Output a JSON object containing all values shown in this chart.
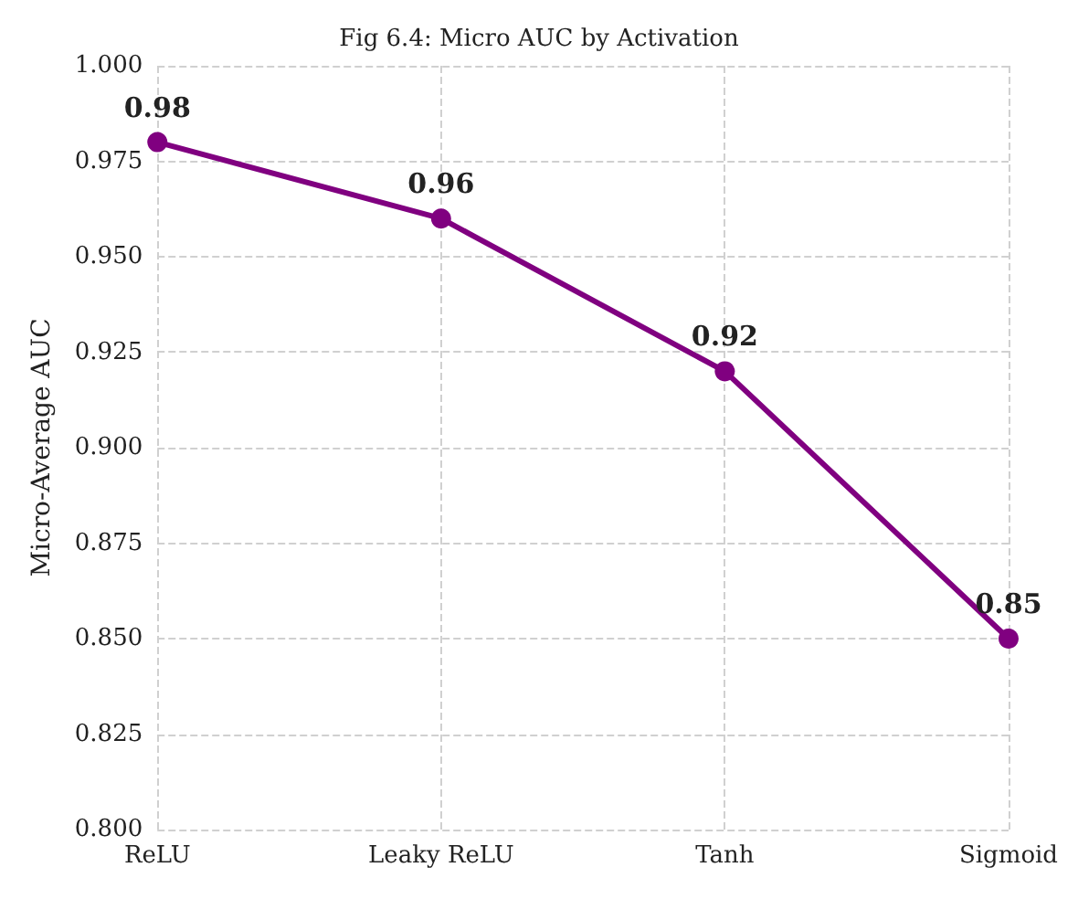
{
  "chart_data": {
    "type": "line",
    "title": "Fig 6.4: Micro AUC by Activation",
    "ylabel": "Micro-Average AUC",
    "categories": [
      "ReLU",
      "Leaky ReLU",
      "Tanh",
      "Sigmoid"
    ],
    "series": [
      {
        "color": "#800080",
        "values": [
          0.98,
          0.96,
          0.92,
          0.85
        ]
      }
    ],
    "ylim": [
      0.8,
      1.0
    ],
    "yticks": [
      {
        "value": 0.8,
        "label": "0.800"
      },
      {
        "value": 0.825,
        "label": "0.825"
      },
      {
        "value": 0.85,
        "label": "0.850"
      },
      {
        "value": 0.875,
        "label": "0.875"
      },
      {
        "value": 0.9,
        "label": "0.900"
      },
      {
        "value": 0.925,
        "label": "0.925"
      },
      {
        "value": 0.95,
        "label": "0.950"
      },
      {
        "value": 0.975,
        "label": "0.975"
      },
      {
        "value": 1.0,
        "label": "1.000"
      }
    ],
    "grid": true,
    "marker": "circle",
    "line_style": "solid",
    "data_labels": true
  }
}
